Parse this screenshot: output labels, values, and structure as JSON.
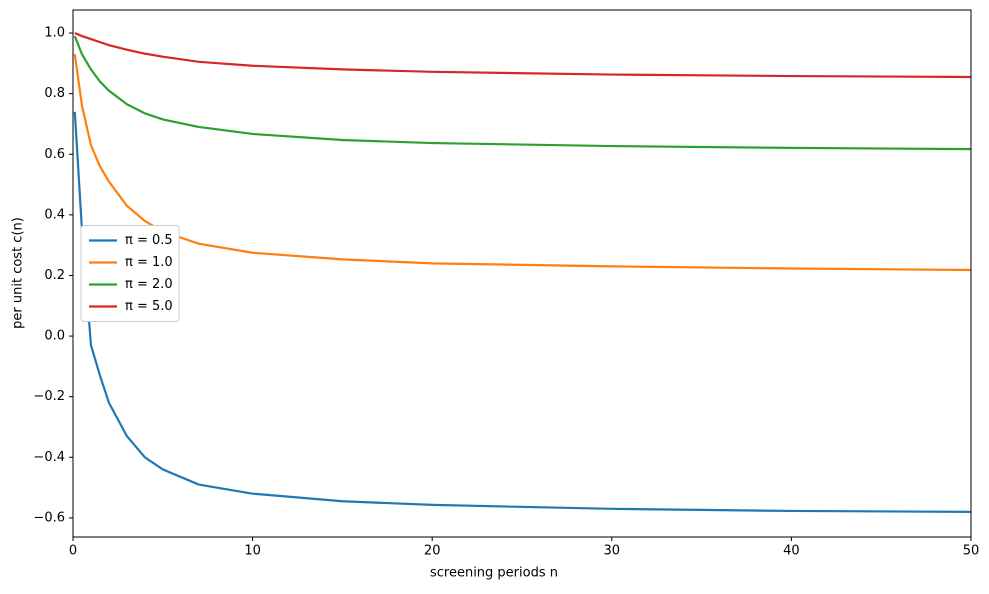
{
  "chart_data": {
    "type": "line",
    "xlabel": "screening periods n",
    "ylabel": "per unit cost c(n)",
    "x": [
      0.1,
      0.5,
      1,
      1.5,
      2,
      3,
      4,
      5,
      7,
      10,
      15,
      20,
      30,
      40,
      50
    ],
    "series": [
      {
        "name": "π = 0.5",
        "color": "#1f77b4",
        "values": [
          0.74,
          0.35,
          -0.03,
          -0.13,
          -0.22,
          -0.33,
          -0.4,
          -0.44,
          -0.49,
          -0.52,
          -0.545,
          -0.557,
          -0.57,
          -0.577,
          -0.58
        ]
      },
      {
        "name": "π = 1.0",
        "color": "#ff7f0e",
        "values": [
          0.93,
          0.76,
          0.63,
          0.56,
          0.51,
          0.43,
          0.38,
          0.345,
          0.305,
          0.275,
          0.253,
          0.24,
          0.23,
          0.223,
          0.218
        ]
      },
      {
        "name": "π = 2.0",
        "color": "#2ca02c",
        "values": [
          0.99,
          0.93,
          0.88,
          0.84,
          0.81,
          0.765,
          0.735,
          0.715,
          0.69,
          0.667,
          0.647,
          0.637,
          0.627,
          0.621,
          0.617
        ]
      },
      {
        "name": "π = 5.0",
        "color": "#d62728",
        "values": [
          1.0,
          0.99,
          0.98,
          0.97,
          0.96,
          0.945,
          0.932,
          0.922,
          0.905,
          0.892,
          0.88,
          0.872,
          0.863,
          0.858,
          0.855
        ]
      }
    ],
    "xlim": [
      0,
      50
    ],
    "xticks": [
      0,
      10,
      20,
      30,
      40,
      50
    ],
    "ylim": [
      -0.663,
      1.076
    ],
    "yticks": [
      {
        "value": -0.6,
        "label": "−0.6"
      },
      {
        "value": -0.4,
        "label": "−0.4"
      },
      {
        "value": -0.2,
        "label": "−0.2"
      },
      {
        "value": 0,
        "label": "0.0"
      },
      0.2,
      0.4,
      0.6,
      0.8,
      {
        "value": 1,
        "label": "1.0"
      }
    ],
    "grid": false,
    "legend": "center left"
  }
}
